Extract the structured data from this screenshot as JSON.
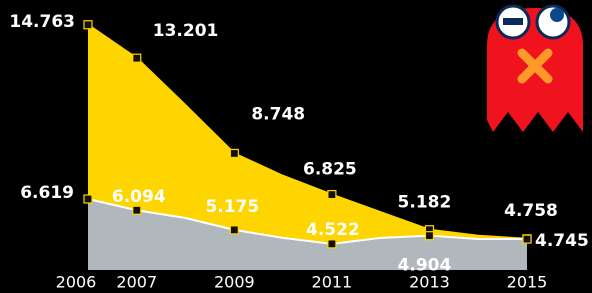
{
  "chart_data": {
    "type": "area",
    "categories": [
      "2006",
      "2007",
      null,
      "2009",
      null,
      "2011",
      null,
      "2013",
      null,
      "2015"
    ],
    "series": [
      {
        "color": "#ffd500",
        "values": [
          14.763,
          13.201,
          11.0,
          8.748,
          7.7,
          6.825,
          6.0,
          5.182,
          4.9,
          4.758
        ],
        "value_labels": [
          "14.763",
          "13.201",
          null,
          "8.748",
          null,
          "6.825",
          null,
          "5.182",
          null,
          "4.758"
        ]
      },
      {
        "color": "#b0b7bd",
        "values": [
          6.619,
          6.094,
          5.73,
          5.175,
          4.8,
          4.522,
          4.8,
          4.904,
          4.75,
          4.745
        ],
        "value_labels": [
          "6.619",
          "6.094",
          null,
          "5.175",
          null,
          "4.522",
          null,
          "4.904",
          null,
          "4.745"
        ]
      }
    ],
    "ylim": [
      3.3,
      15.92
    ]
  }
}
